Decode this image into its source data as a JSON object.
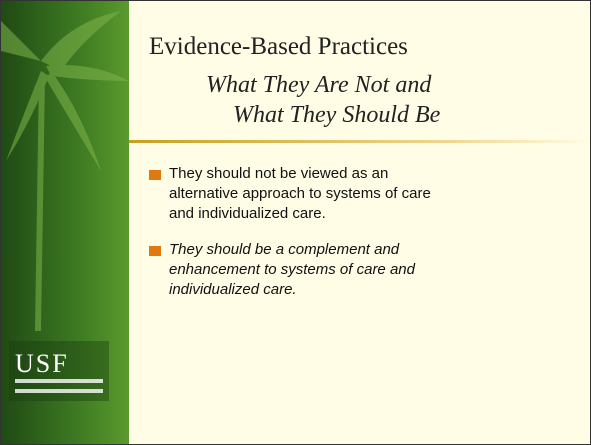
{
  "slide": {
    "title": "Evidence-Based Practices",
    "subtitle": [
      "What They Are Not and",
      "What They Should Be"
    ],
    "bullets": [
      {
        "lines": [
          "They should not be viewed as an",
          "alternative approach to systems of care",
          "and individualized care."
        ]
      },
      {
        "lines": [
          "They should be a complement and",
          "enhancement to systems of care and",
          "individualized care."
        ]
      }
    ],
    "logo": "USF"
  }
}
